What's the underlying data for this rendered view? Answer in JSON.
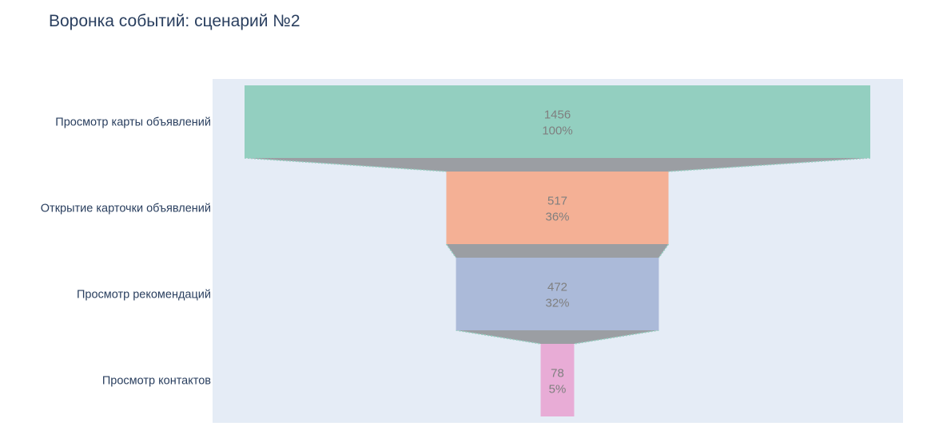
{
  "chart_data": {
    "type": "funnel",
    "title": "Воронка событий: сценарий №2",
    "stages": [
      {
        "label": "Просмотр карты объявлений",
        "value": 1456,
        "percent": "100%",
        "color": "#93cfc0"
      },
      {
        "label": "Открытие карточки объявлений",
        "value": 517,
        "percent": "36%",
        "color": "#f4b095"
      },
      {
        "label": "Просмотр рекомендаций",
        "value": 472,
        "percent": "32%",
        "color": "#abbad9"
      },
      {
        "label": "Просмотр контактов",
        "value": 78,
        "percent": "5%",
        "color": "#e8acd6"
      }
    ],
    "plot_background": "#e5ecf6",
    "connector_color": "#9b9ea3",
    "connector_line_color": "#93cfc0"
  }
}
